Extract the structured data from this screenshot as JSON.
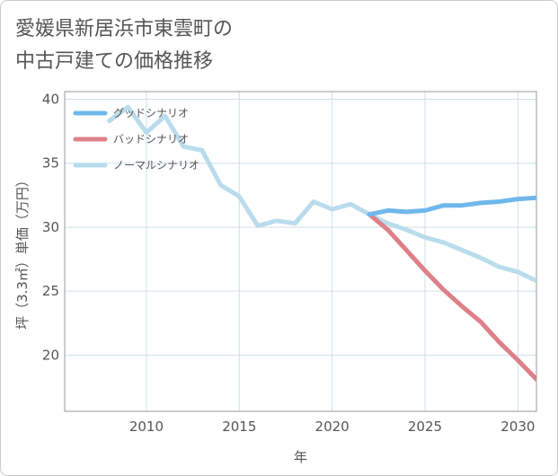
{
  "title_line1": "愛媛県新居浜市東雲町の",
  "title_line2": "中古戸建ての価格推移",
  "chart_data": {
    "type": "line",
    "xlabel": "年",
    "ylabel": "坪（3.3㎡）単価（万円）",
    "xlim": [
      2005.6,
      2031
    ],
    "ylim": [
      15.6,
      40.6
    ],
    "xticks": [
      2010,
      2015,
      2020,
      2025,
      2030
    ],
    "yticks": [
      20,
      25,
      30,
      35,
      40
    ],
    "grid": true,
    "legend_position": "top-left",
    "series": [
      {
        "name": "グッドシナリオ",
        "color": "#6fb8ec",
        "x": [
          2022,
          2023,
          2024,
          2025,
          2026,
          2027,
          2028,
          2029,
          2030,
          2031
        ],
        "y": [
          31.0,
          31.3,
          31.2,
          31.3,
          31.7,
          31.7,
          31.9,
          32.0,
          32.2,
          32.3
        ]
      },
      {
        "name": "バッドシナリオ",
        "color": "#dd8088",
        "x": [
          2022,
          2023,
          2024,
          2025,
          2026,
          2027,
          2028,
          2029,
          2030,
          2031
        ],
        "y": [
          31.0,
          29.8,
          28.2,
          26.6,
          25.1,
          23.8,
          22.6,
          21.0,
          19.6,
          18.1
        ]
      },
      {
        "name": "ノーマルシナリオ",
        "color": "#b9dcec",
        "x": [
          2008,
          2009,
          2010,
          2011,
          2012,
          2013,
          2014,
          2015,
          2016,
          2017,
          2018,
          2019,
          2020,
          2021,
          2022,
          2023,
          2024,
          2025,
          2026,
          2027,
          2028,
          2029,
          2030,
          2031
        ],
        "y": [
          38.3,
          39.4,
          37.4,
          38.7,
          36.3,
          36.0,
          33.3,
          32.4,
          30.1,
          30.5,
          30.3,
          32.0,
          31.4,
          31.8,
          31.0,
          30.3,
          29.8,
          29.2,
          28.8,
          28.2,
          27.6,
          26.9,
          26.5,
          25.8
        ]
      }
    ]
  }
}
